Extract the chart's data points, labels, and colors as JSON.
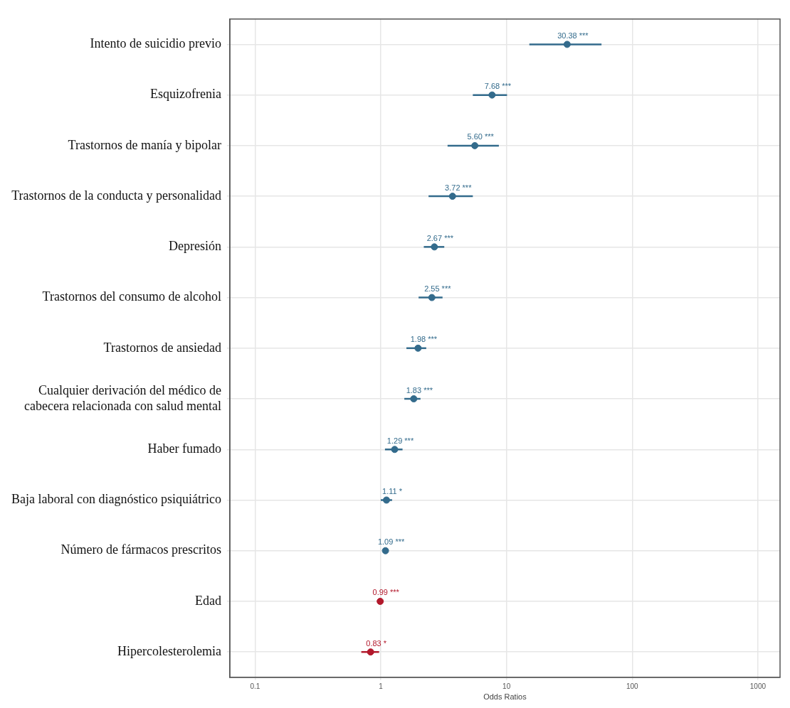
{
  "chart_data": {
    "type": "scatter",
    "orientation": "horizontal",
    "xlabel": "Odds Ratios",
    "categories": [
      "Intento de suicidio previo",
      "Esquizofrenia",
      "Trastornos de manía y bipolar",
      "Trastornos de la conducta y personalidad",
      "Depresión",
      "Trastornos del consumo de alcohol",
      "Trastornos de ansiedad",
      "Cualquier derivación del médico de\ncabecera relacionada con salud mental",
      "Haber fumado",
      "Baja laboral con diagnóstico psiquiátrico",
      "Número de fármacos prescritos",
      "Edad",
      "Hipercolesterolemia"
    ],
    "values": [
      30.38,
      7.68,
      5.6,
      3.72,
      2.67,
      2.55,
      1.98,
      1.83,
      1.29,
      1.11,
      1.09,
      0.99,
      0.83
    ],
    "errors": [
      [
        15.2,
        57
      ],
      [
        5.4,
        10.1
      ],
      [
        3.4,
        8.7
      ],
      [
        2.4,
        5.4
      ],
      [
        2.2,
        3.2
      ],
      [
        2.0,
        3.1
      ],
      [
        1.6,
        2.3
      ],
      [
        1.54,
        2.07
      ],
      [
        1.08,
        1.49
      ],
      [
        1.0,
        1.23
      ],
      null,
      null,
      [
        0.7,
        0.97
      ]
    ],
    "value_labels": [
      "30.38 ***",
      "7.68 ***",
      "5.60 ***",
      "3.72 ***",
      "2.67 ***",
      "2.55 ***",
      "1.98 ***",
      "1.83 ***",
      "1.29 ***",
      "1.11 *",
      "1.09 ***",
      "0.99 ***",
      "0.83 *"
    ],
    "colors": [
      "#336b8c",
      "#336b8c",
      "#336b8c",
      "#336b8c",
      "#336b8c",
      "#336b8c",
      "#336b8c",
      "#336b8c",
      "#336b8c",
      "#336b8c",
      "#336b8c",
      "#b2182b",
      "#b2182b"
    ],
    "xlim": [
      0.063,
      1500
    ],
    "xticks": [
      0.1,
      1,
      10,
      100,
      1000
    ],
    "log": "x",
    "grid": true,
    "marker": "circle"
  }
}
